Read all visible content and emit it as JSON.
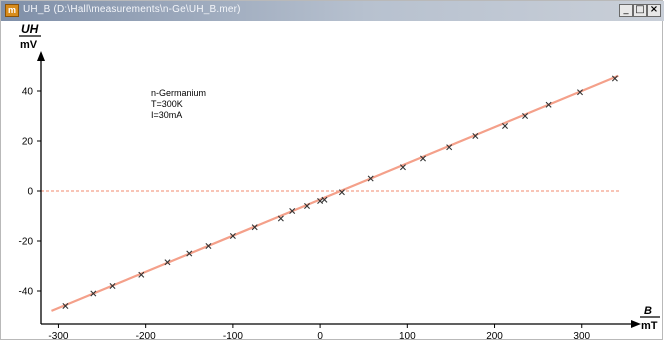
{
  "window": {
    "title": "UH_B (D:\\Hall\\measurements\\n-Ge\\UH_B.mer)",
    "app_icon": "m",
    "icons": {
      "minimize": "minimize-icon",
      "maximize": "maximize-icon",
      "close": "close-icon"
    },
    "button_glyphs": {
      "minimize": "_",
      "maximize": "□",
      "close": "×"
    }
  },
  "chart_data": {
    "type": "scatter",
    "title": "",
    "annotation": [
      "n-Germanium",
      "T=300K",
      "I=30mA"
    ],
    "ylabel": {
      "symbol": "UH",
      "unit": "mV"
    },
    "xlabel": {
      "symbol": "B",
      "unit": "mT"
    },
    "xlim": [
      -320,
      345
    ],
    "ylim": [
      -52,
      48
    ],
    "xticks": [
      -300,
      -200,
      -100,
      0,
      100,
      200,
      300
    ],
    "yticks": [
      -40,
      -20,
      0,
      20,
      40
    ],
    "xtick_labels": [
      "-300",
      "-200",
      "-100",
      "0",
      "100",
      "200",
      "300"
    ],
    "ytick_labels": [
      "-40",
      "-20",
      "0",
      "20",
      "40"
    ],
    "grid": false,
    "colors": {
      "fit_line": "#f4a08a",
      "zero_line": "#f4a08a",
      "marker": "#333333",
      "axis": "#000000"
    },
    "fit_line": {
      "slope": 0.1447,
      "intercept": -3.4
    },
    "series": [
      {
        "marker": "x",
        "x": [
          -292,
          -260,
          -238,
          -205,
          -175,
          -150,
          -128,
          -100,
          -75,
          -45,
          -32,
          -15,
          0,
          5,
          25,
          58,
          95,
          118,
          148,
          178,
          212,
          235,
          262,
          298,
          338
        ],
        "y": [
          -46,
          -41,
          -38,
          -33.5,
          -28.5,
          -25,
          -22,
          -18,
          -14.5,
          -11,
          -8,
          -6,
          -4,
          -3.5,
          -0.5,
          5,
          9.5,
          13,
          17.5,
          22,
          26,
          30,
          34.5,
          39.5,
          45
        ]
      }
    ]
  }
}
